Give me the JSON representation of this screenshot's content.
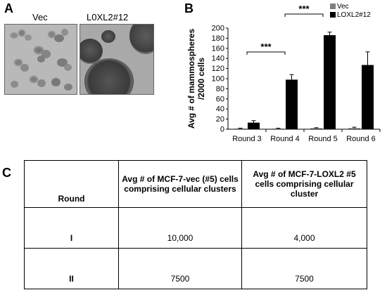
{
  "panels": {
    "a_letter": "A",
    "b_letter": "B",
    "c_letter": "C"
  },
  "micrographs": {
    "left_label": "Vec",
    "right_label": "L0XL2#12"
  },
  "chart_data": {
    "type": "bar",
    "categories": [
      "Round 3",
      "Round 4",
      "Round 5",
      "Round 6"
    ],
    "series": [
      {
        "name": "Vec",
        "color": "#808080",
        "values": [
          1,
          1,
          2,
          2
        ],
        "errors": [
          1,
          1,
          1,
          2
        ]
      },
      {
        "name": "LOXL2#12",
        "color": "#000000",
        "values": [
          13,
          98,
          186,
          127
        ],
        "errors": [
          4,
          10,
          6,
          26
        ]
      }
    ],
    "ylabel_line1": "Avg # of mammospheres",
    "ylabel_line2": "/2000 cells",
    "ylim": [
      0,
      200
    ],
    "yticks": [
      0,
      20,
      40,
      60,
      80,
      100,
      120,
      140,
      160,
      180,
      200
    ],
    "legend_position": "top-right",
    "significance": [
      {
        "label": "***",
        "from": "Round 3",
        "to": "Round 4"
      },
      {
        "label": "***",
        "from": "Round 4",
        "to": "Round 5"
      }
    ]
  },
  "table": {
    "headers": [
      "Round",
      "Avg # of MCF-7-vec (#5) cells comprising cellular clusters",
      "Avg # of MCF-7-LOXL2 #5 cells comprising cellular cluster"
    ],
    "rows": [
      {
        "round": "I",
        "vec": "10,000",
        "loxl2": "4,000"
      },
      {
        "round": "II",
        "vec": "7500",
        "loxl2": "7500"
      }
    ]
  }
}
